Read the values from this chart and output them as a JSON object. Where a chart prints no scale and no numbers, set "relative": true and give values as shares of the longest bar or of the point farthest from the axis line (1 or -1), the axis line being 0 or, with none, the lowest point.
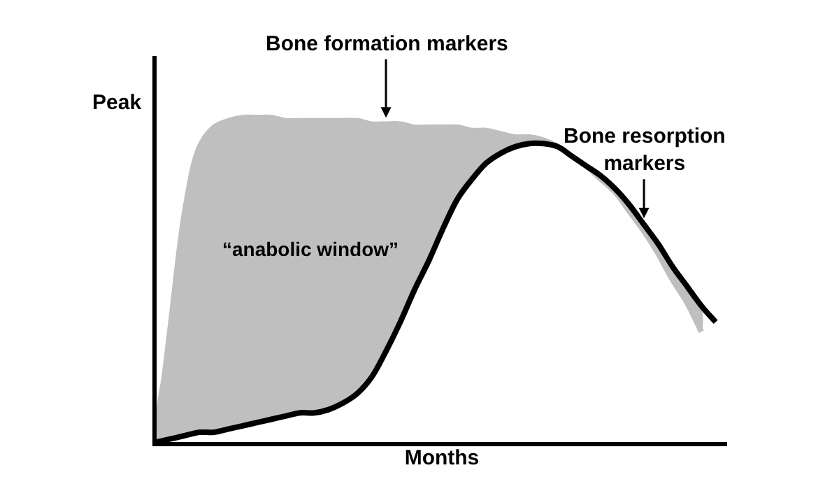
{
  "chart_data": {
    "type": "line",
    "relative": true,
    "xlabel": "Months",
    "ylabel": "Peak",
    "categories": [
      null,
      null,
      null,
      null,
      null,
      null,
      null,
      null,
      null,
      null,
      null,
      null,
      null,
      null,
      null,
      null,
      null,
      null,
      null,
      null,
      null,
      null,
      null,
      null,
      null,
      null,
      null,
      null,
      null,
      null,
      null,
      null,
      null,
      null,
      null,
      null,
      null,
      null,
      null,
      null
    ],
    "series": [
      {
        "name": "Bone resorption markers",
        "color": "#000000",
        "values": [
          0,
          0.01,
          0.02,
          0.03,
          0.03,
          0.04,
          0.05,
          0.06,
          0.07,
          0.08,
          0.09,
          0.09,
          0.1,
          0.12,
          0.15,
          0.2,
          0.28,
          0.37,
          0.47,
          0.56,
          0.66,
          0.75,
          0.81,
          0.86,
          0.89,
          0.91,
          0.92,
          0.92,
          0.91,
          0.88,
          0.85,
          0.82,
          0.78,
          0.73,
          0.67,
          0.61,
          0.54,
          0.48,
          0.42,
          0.37
        ]
      },
      {
        "name": "Bone formation markers",
        "type": "area",
        "color": "#bfbfbf",
        "values": [
          0,
          0.37,
          0.72,
          0.91,
          0.97,
          0.99,
          1.0,
          1.0,
          1.0,
          0.99,
          0.99,
          0.99,
          0.99,
          0.99,
          0.99,
          0.98,
          0.98,
          0.98,
          0.97,
          0.97,
          0.97,
          0.97,
          0.96,
          0.96,
          0.95,
          0.94,
          0.94,
          0.93,
          0.91,
          0.88,
          0.85,
          0.81,
          0.77,
          0.71,
          0.65,
          0.58,
          0.5,
          0.43,
          0.34,
          null
        ]
      }
    ],
    "annotations": [
      "“anabolic window”"
    ],
    "legend": false,
    "tick_labels": false
  }
}
